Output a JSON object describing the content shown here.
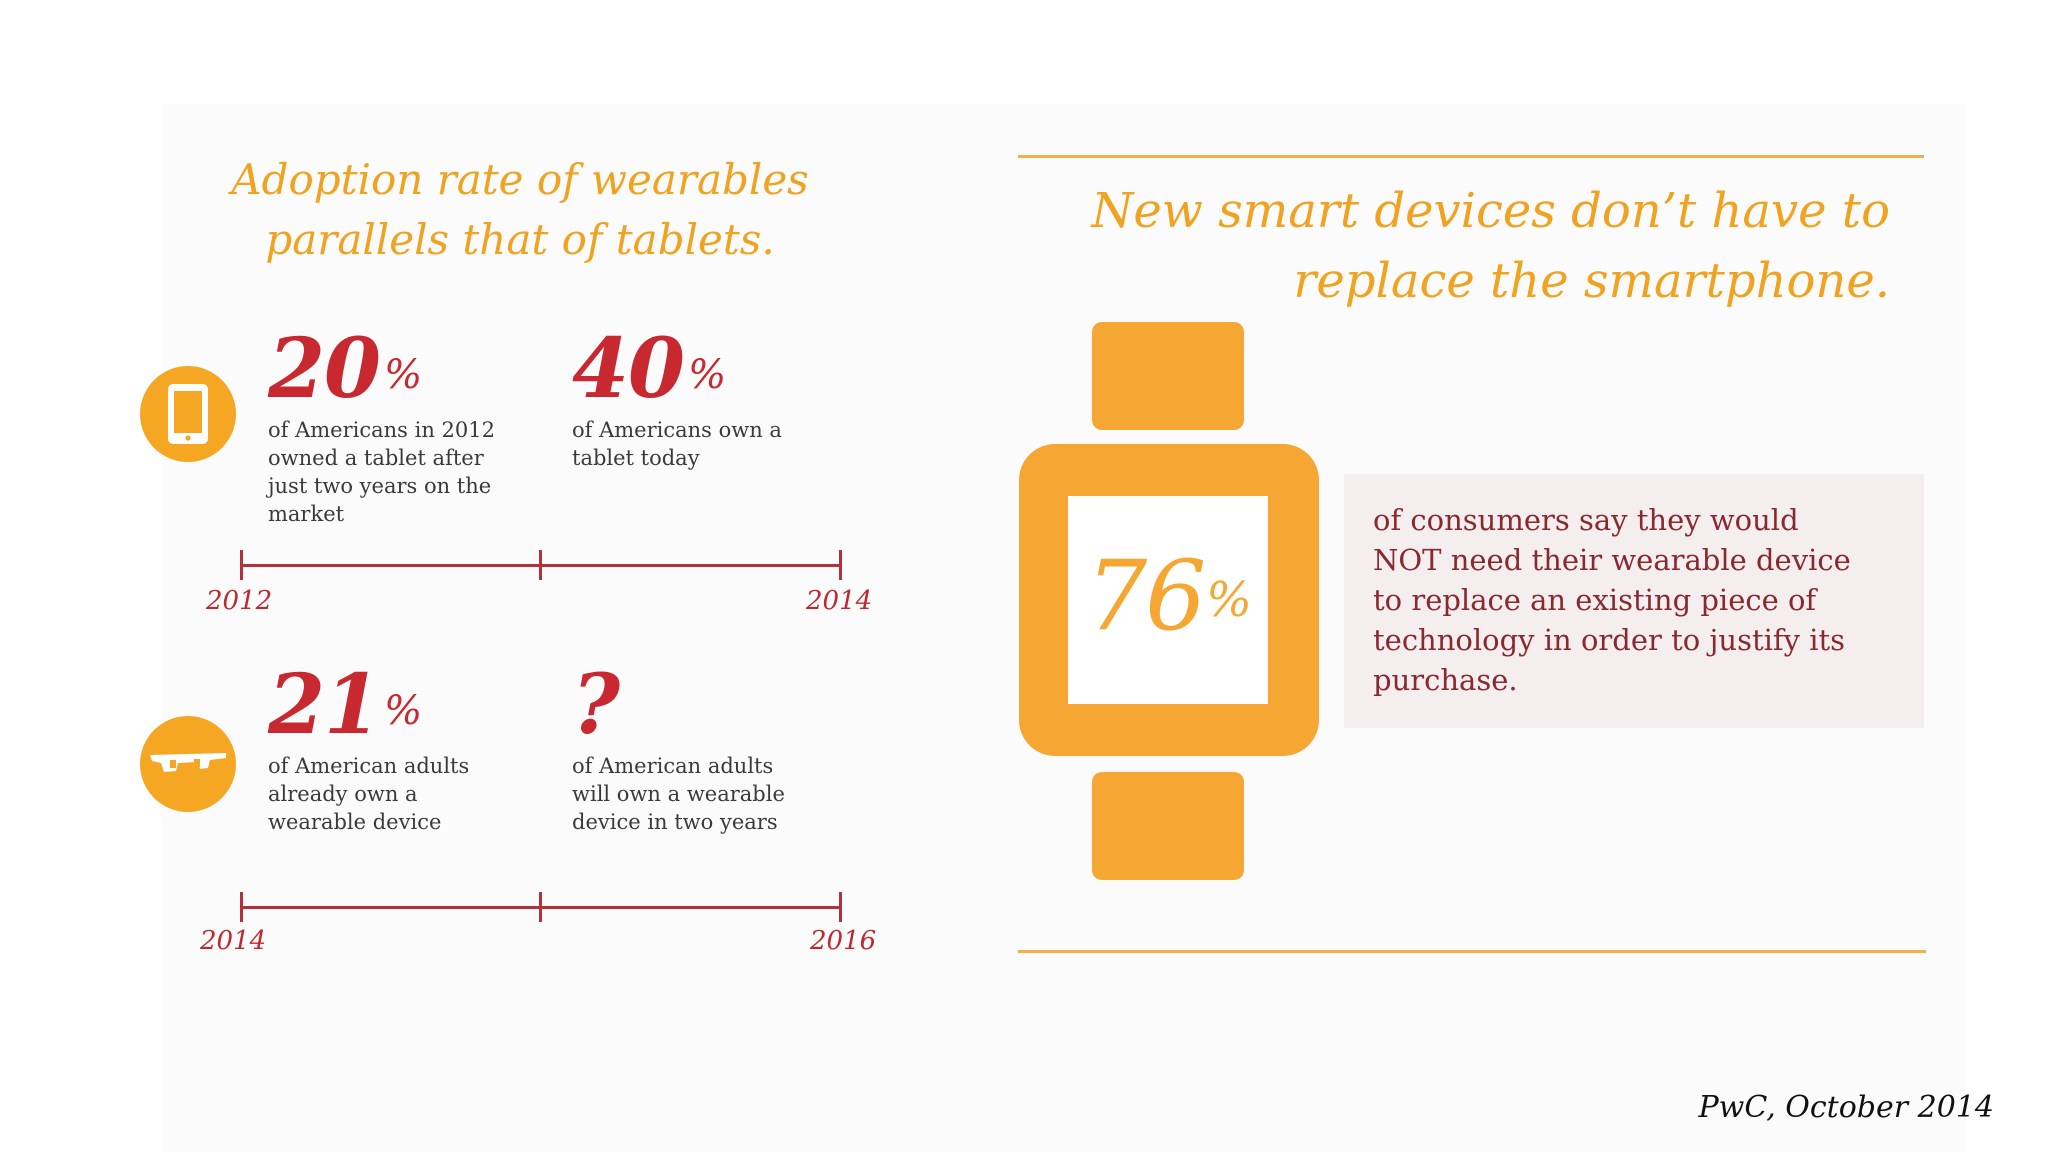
{
  "left_panel": {
    "headline": "Adoption rate of wearables\nparallels that of tablets.",
    "tablet_row": {
      "stat_a": {
        "value": "20",
        "unit": "%",
        "desc": "of Americans in 2012\nowned a tablet after\njust two years on the\nmarket"
      },
      "stat_b": {
        "value": "40",
        "unit": "%",
        "desc": "of Americans own a\ntablet today"
      },
      "timeline": {
        "start": "2012",
        "end": "2014"
      },
      "icon": "tablet-icon"
    },
    "wearable_row": {
      "stat_a": {
        "value": "21",
        "unit": "%",
        "desc": "of American adults\nalready own a\nwearable device"
      },
      "stat_b": {
        "value": "?",
        "desc": "of American adults\nwill own a wearable\ndevice in two years"
      },
      "timeline": {
        "start": "2014",
        "end": "2016"
      },
      "icon": "smart-glasses-icon"
    }
  },
  "right_panel": {
    "headline": "New smart devices don’t have to\nreplace the smartphone.",
    "watch_stat": {
      "value": "76",
      "unit": "%"
    },
    "consumer_text": "of consumers say they would\nNOT need their wearable device\nto replace an existing piece of\ntechnology in order to justify its\npurchase.",
    "icon": "smartwatch-icon"
  },
  "footer": {
    "source": "PwC, October 2014"
  },
  "colors": {
    "orange": "#f6a733",
    "headline_orange": "#f0a221",
    "red": "#c8282f",
    "dark_red_text": "#8a2830",
    "box_bg": "#f4efee"
  }
}
